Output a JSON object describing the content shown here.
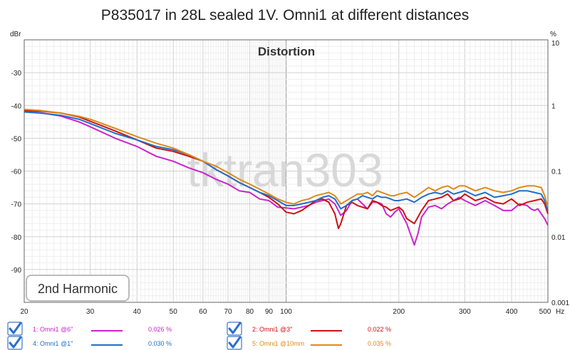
{
  "chart_data": {
    "type": "line",
    "title": "P835017 in 28L sealed 1V. Omni1 at different distances",
    "subtitle": "Distortion",
    "watermark": "tktran303",
    "annotation": "2nd Harmonic",
    "x_scale": "log",
    "xlim": [
      20,
      500
    ],
    "x_unit": "Hz",
    "x_ticks": [
      "20",
      "30",
      "40",
      "50",
      "60",
      "70",
      "80",
      "90",
      "100",
      "200",
      "300",
      "400",
      "500"
    ],
    "y_left_label": "dBr",
    "ylim": [
      -100,
      -20
    ],
    "y_ticks_left": [
      "-30",
      "-40",
      "-50",
      "-60",
      "-70",
      "-80",
      "-90"
    ],
    "y_right_label": "%",
    "y_ticks_right": [
      "10",
      "1",
      "0.1",
      "0.01",
      "0.001"
    ],
    "grid": true,
    "legend_position": "bottom",
    "series": [
      {
        "name": "1: Omni1 @6\"",
        "color": "#cc22cc",
        "thd": "0.026 %",
        "x": [
          20,
          22,
          25,
          28,
          30,
          35,
          40,
          45,
          50,
          55,
          60,
          65,
          70,
          75,
          80,
          85,
          90,
          95,
          100,
          105,
          110,
          115,
          120,
          125,
          130,
          135,
          140,
          145,
          150,
          155,
          160,
          165,
          170,
          175,
          180,
          185,
          190,
          195,
          200,
          210,
          220,
          225,
          230,
          240,
          250,
          260,
          270,
          280,
          290,
          300,
          320,
          340,
          360,
          380,
          400,
          420,
          440,
          450,
          460,
          470,
          480,
          490,
          500
        ],
        "values": [
          -41.8,
          -42.2,
          -43.2,
          -45.0,
          -46.5,
          -50.0,
          -52.5,
          -55.5,
          -57.0,
          -59.0,
          -60.5,
          -62.5,
          -64.0,
          -66.0,
          -66.5,
          -68.5,
          -69.0,
          -71.0,
          -71.2,
          -71.5,
          -71.0,
          -70.5,
          -69.5,
          -69.0,
          -68.5,
          -70.0,
          -73.5,
          -72.0,
          -69.0,
          -68.5,
          -70.0,
          -71.5,
          -69.5,
          -69.5,
          -70.0,
          -73.0,
          -74.0,
          -72.5,
          -71.5,
          -76.0,
          -82.5,
          -79.0,
          -74.0,
          -71.0,
          -70.5,
          -71.5,
          -70.0,
          -69.0,
          -68.0,
          -69.0,
          -70.5,
          -69.0,
          -70.5,
          -72.0,
          -72.0,
          -70.0,
          -70.5,
          -71.5,
          -72.0,
          -71.5,
          -73.0,
          -74.5,
          -76.5
        ]
      },
      {
        "name": "2: Omni1 @3\"",
        "color": "#cc1111",
        "thd": "0.022 %",
        "x": [
          20,
          22,
          25,
          28,
          30,
          35,
          40,
          45,
          50,
          55,
          60,
          65,
          70,
          75,
          80,
          85,
          90,
          95,
          100,
          105,
          110,
          115,
          120,
          125,
          130,
          135,
          138,
          140,
          145,
          150,
          155,
          160,
          165,
          170,
          175,
          180,
          185,
          190,
          195,
          200,
          205,
          210,
          220,
          230,
          240,
          250,
          260,
          270,
          280,
          290,
          300,
          320,
          340,
          360,
          380,
          400,
          420,
          440,
          460,
          480,
          490,
          500
        ],
        "values": [
          -41.5,
          -41.7,
          -42.3,
          -43.5,
          -44.8,
          -47.8,
          -50.5,
          -53.0,
          -54.0,
          -55.5,
          -57.0,
          -59.5,
          -61.5,
          -63.5,
          -65.0,
          -66.5,
          -68.0,
          -70.0,
          -72.5,
          -73.0,
          -72.0,
          -70.5,
          -69.0,
          -68.5,
          -69.5,
          -73.0,
          -77.5,
          -76.0,
          -70.5,
          -69.5,
          -70.5,
          -71.0,
          -71.5,
          -69.0,
          -69.5,
          -70.5,
          -71.0,
          -72.0,
          -71.5,
          -71.0,
          -72.0,
          -74.5,
          -76.0,
          -72.0,
          -69.0,
          -68.5,
          -68.0,
          -67.0,
          -69.0,
          -68.5,
          -67.0,
          -69.0,
          -68.0,
          -69.5,
          -70.0,
          -68.5,
          -70.5,
          -69.5,
          -69.0,
          -68.5,
          -70.0,
          -73.0
        ]
      },
      {
        "name": "4: Omni1 @1\"",
        "color": "#1f6fc8",
        "thd": "0.030 %",
        "x": [
          20,
          22,
          25,
          28,
          30,
          35,
          40,
          45,
          50,
          55,
          60,
          65,
          70,
          75,
          80,
          85,
          90,
          95,
          100,
          105,
          110,
          115,
          120,
          125,
          130,
          135,
          140,
          145,
          150,
          155,
          160,
          165,
          170,
          175,
          180,
          185,
          190,
          195,
          200,
          210,
          220,
          230,
          240,
          250,
          260,
          270,
          280,
          290,
          300,
          320,
          340,
          360,
          380,
          400,
          420,
          440,
          460,
          480,
          490,
          500
        ],
        "values": [
          -42.0,
          -42.3,
          -43.0,
          -44.2,
          -45.5,
          -48.5,
          -50.5,
          -52.5,
          -53.5,
          -55.0,
          -57.0,
          -59.5,
          -61.5,
          -63.5,
          -65.0,
          -66.5,
          -67.5,
          -69.0,
          -70.5,
          -70.5,
          -70.0,
          -69.5,
          -69.0,
          -68.0,
          -67.5,
          -68.5,
          -71.5,
          -70.5,
          -69.0,
          -68.5,
          -67.5,
          -68.0,
          -68.5,
          -67.5,
          -68.0,
          -68.0,
          -68.5,
          -69.0,
          -69.0,
          -68.5,
          -69.5,
          -68.0,
          -67.0,
          -66.5,
          -67.0,
          -66.0,
          -67.0,
          -66.5,
          -66.0,
          -67.5,
          -66.5,
          -68.0,
          -67.5,
          -67.0,
          -66.0,
          -66.0,
          -66.5,
          -67.0,
          -69.0,
          -72.0
        ]
      },
      {
        "name": "5: Omni1 @10mm",
        "color": "#dd8a1a",
        "thd": "0.035 %",
        "x": [
          20,
          22,
          25,
          28,
          30,
          35,
          40,
          45,
          50,
          55,
          60,
          65,
          70,
          75,
          80,
          85,
          90,
          95,
          100,
          105,
          110,
          115,
          120,
          125,
          130,
          135,
          140,
          145,
          150,
          155,
          160,
          165,
          170,
          175,
          180,
          185,
          190,
          195,
          200,
          210,
          220,
          230,
          240,
          250,
          260,
          270,
          280,
          290,
          300,
          320,
          340,
          360,
          380,
          400,
          420,
          440,
          460,
          480,
          490,
          500
        ],
        "values": [
          -41.2,
          -41.5,
          -42.3,
          -43.3,
          -44.2,
          -47.0,
          -49.5,
          -51.5,
          -53.0,
          -55.0,
          -57.0,
          -58.5,
          -60.5,
          -62.5,
          -64.0,
          -65.5,
          -67.0,
          -68.5,
          -69.5,
          -70.0,
          -69.0,
          -68.5,
          -67.5,
          -67.0,
          -66.5,
          -67.5,
          -70.0,
          -69.0,
          -68.0,
          -67.0,
          -67.0,
          -66.5,
          -67.5,
          -66.0,
          -66.5,
          -67.0,
          -67.5,
          -67.5,
          -67.0,
          -66.5,
          -68.0,
          -66.5,
          -65.0,
          -66.0,
          -65.0,
          -64.5,
          -65.5,
          -64.5,
          -64.5,
          -66.0,
          -65.0,
          -66.0,
          -66.5,
          -66.0,
          -65.0,
          -64.5,
          -64.5,
          -65.0,
          -67.5,
          -71.0
        ]
      }
    ]
  }
}
